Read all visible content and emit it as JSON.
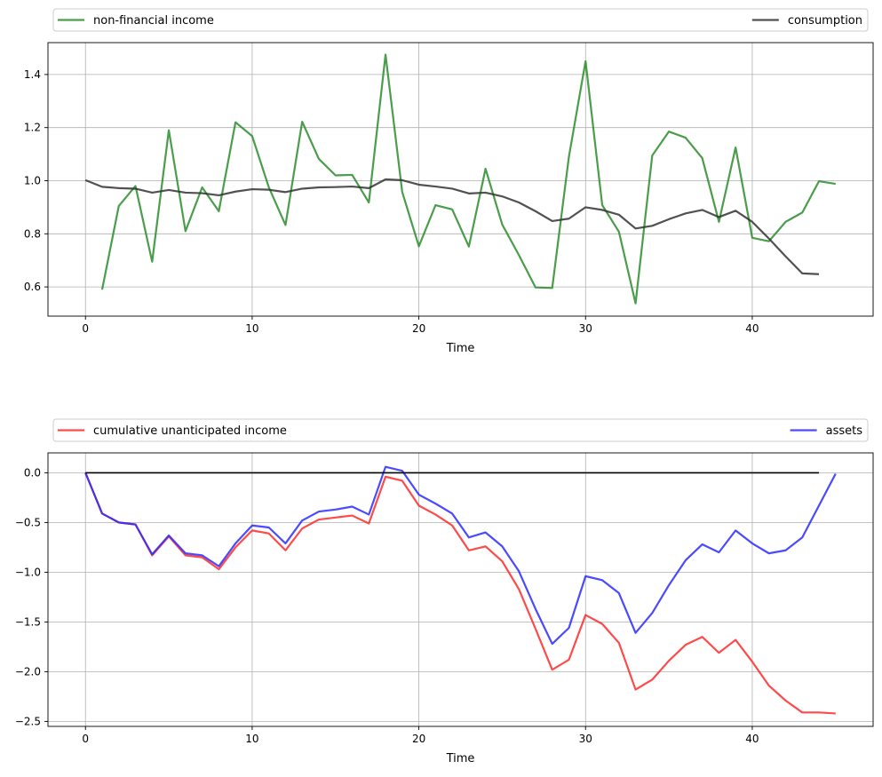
{
  "chart_data": [
    {
      "type": "line",
      "xlabel": "Time",
      "ylabel": "",
      "xlim": [
        -2.25,
        47.25
      ],
      "ylim": [
        0.49,
        1.52
      ],
      "xticks": [
        0,
        10,
        20,
        30,
        40
      ],
      "yticks": [
        0.6,
        0.8,
        1.0,
        1.2,
        1.4
      ],
      "ytick_labels": [
        "0.6",
        "0.8",
        "1.0",
        "1.2",
        "1.4"
      ],
      "grid": true,
      "legend_placement": "top, above plot, expanded",
      "series": [
        {
          "name": "non-financial income",
          "color": "#2a8c2a",
          "x_start": 1,
          "values": [
            0.59,
            0.905,
            0.98,
            0.695,
            1.19,
            0.81,
            0.975,
            0.885,
            1.22,
            1.168,
            0.975,
            0.833,
            1.222,
            1.082,
            1.02,
            1.022,
            0.918,
            1.475,
            0.958,
            0.753,
            0.908,
            0.892,
            0.752,
            1.045,
            0.835,
            0.72,
            0.598,
            0.596,
            1.09,
            1.45,
            0.908,
            0.808,
            0.538,
            1.095,
            1.185,
            1.162,
            1.085,
            0.845,
            1.125,
            0.785,
            0.772,
            0.845,
            0.88,
            0.998,
            0.988
          ]
        },
        {
          "name": "consumption",
          "color": "#333333",
          "x_start": 0,
          "values": [
            1.002,
            0.977,
            0.972,
            0.97,
            0.955,
            0.965,
            0.955,
            0.953,
            0.945,
            0.959,
            0.968,
            0.966,
            0.957,
            0.97,
            0.975,
            0.976,
            0.978,
            0.972,
            1.005,
            1.002,
            0.985,
            0.978,
            0.97,
            0.952,
            0.955,
            0.941,
            0.918,
            0.885,
            0.848,
            0.857,
            0.9,
            0.89,
            0.872,
            0.82,
            0.83,
            0.855,
            0.877,
            0.89,
            0.863,
            0.887,
            0.845,
            0.782,
            0.715,
            0.651,
            0.648
          ]
        }
      ]
    },
    {
      "type": "line",
      "xlabel": "Time",
      "ylabel": "",
      "xlim": [
        -2.25,
        47.25
      ],
      "ylim": [
        -2.55,
        0.2
      ],
      "xticks": [
        0,
        10,
        20,
        30,
        40
      ],
      "yticks": [
        -2.5,
        -2.0,
        -1.5,
        -1.0,
        -0.5,
        0.0
      ],
      "ytick_labels": [
        "−2.5",
        "−2.0",
        "−1.5",
        "−1.0",
        "−0.5",
        "0.0"
      ],
      "grid": true,
      "legend_placement": "top, above plot, expanded",
      "series": [
        {
          "name": "cumulative unanticipated income",
          "color": "#ff2a2a",
          "x_start": 0,
          "values": [
            0.0,
            -0.41,
            -0.5,
            -0.52,
            -0.83,
            -0.64,
            -0.83,
            -0.85,
            -0.97,
            -0.75,
            -0.58,
            -0.61,
            -0.78,
            -0.56,
            -0.47,
            -0.45,
            -0.43,
            -0.51,
            -0.04,
            -0.08,
            -0.33,
            -0.42,
            -0.53,
            -0.78,
            -0.74,
            -0.89,
            -1.17,
            -1.57,
            -1.98,
            -1.88,
            -1.43,
            -1.52,
            -1.71,
            -2.18,
            -2.08,
            -1.89,
            -1.73,
            -1.65,
            -1.81,
            -1.68,
            -1.9,
            -2.14,
            -2.29,
            -2.41,
            -2.41,
            -2.42
          ]
        },
        {
          "name": "assets",
          "color": "#2a2aff",
          "x_start": 0,
          "values": [
            0.0,
            -0.41,
            -0.5,
            -0.52,
            -0.82,
            -0.63,
            -0.81,
            -0.83,
            -0.94,
            -0.71,
            -0.53,
            -0.55,
            -0.71,
            -0.48,
            -0.39,
            -0.37,
            -0.34,
            -0.42,
            0.06,
            0.02,
            -0.22,
            -0.31,
            -0.41,
            -0.65,
            -0.6,
            -0.74,
            -0.99,
            -1.37,
            -1.72,
            -1.56,
            -1.04,
            -1.08,
            -1.21,
            -1.61,
            -1.41,
            -1.13,
            -0.88,
            -0.72,
            -0.8,
            -0.58,
            -0.71,
            -0.81,
            -0.78,
            -0.65,
            -0.33,
            -0.01
          ]
        },
        {
          "name": "",
          "color": "#000000",
          "x_start": 0,
          "values": [
            0,
            0,
            0,
            0,
            0,
            0,
            0,
            0,
            0,
            0,
            0,
            0,
            0,
            0,
            0,
            0,
            0,
            0,
            0,
            0,
            0,
            0,
            0,
            0,
            0,
            0,
            0,
            0,
            0,
            0,
            0,
            0,
            0,
            0,
            0,
            0,
            0,
            0,
            0,
            0,
            0,
            0,
            0,
            0,
            0
          ]
        }
      ]
    }
  ]
}
